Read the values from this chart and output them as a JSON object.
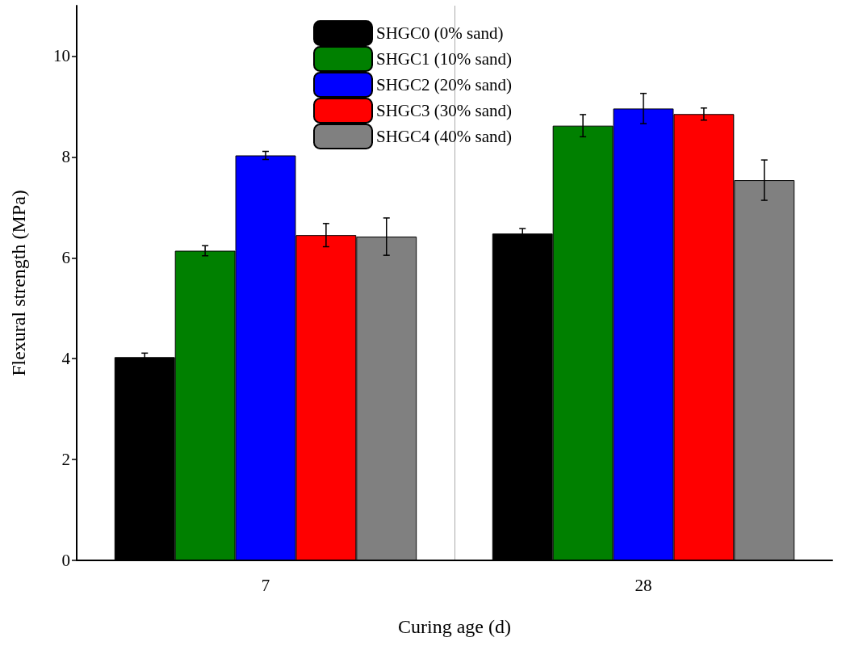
{
  "chart_data": {
    "type": "bar",
    "xlabel": "Curing age (d)",
    "ylabel": "Flexural strength (MPa)",
    "categories": [
      "7",
      "28"
    ],
    "series": [
      {
        "name": "SHGC0 (0% sand)",
        "color": "#000000",
        "values": [
          4.03,
          6.48
        ],
        "errors": [
          0.08,
          0.1
        ]
      },
      {
        "name": "SHGC1 (10% sand)",
        "color": "#008000",
        "values": [
          6.14,
          8.62
        ],
        "errors": [
          0.1,
          0.22
        ]
      },
      {
        "name": "SHGC2 (20% sand)",
        "color": "#0000ff",
        "values": [
          8.03,
          8.96
        ],
        "errors": [
          0.08,
          0.3
        ]
      },
      {
        "name": "SHGC3 (30% sand)",
        "color": "#ff0000",
        "values": [
          6.45,
          8.85
        ],
        "errors": [
          0.23,
          0.12
        ]
      },
      {
        "name": "SHGC4 (40% sand)",
        "color": "#808080",
        "values": [
          6.42,
          7.54
        ],
        "errors": [
          0.37,
          0.4
        ]
      }
    ],
    "ylim": [
      0,
      11
    ],
    "yticks": [
      0,
      2,
      4,
      6,
      8,
      10
    ],
    "grid": "x",
    "legend": "top"
  }
}
